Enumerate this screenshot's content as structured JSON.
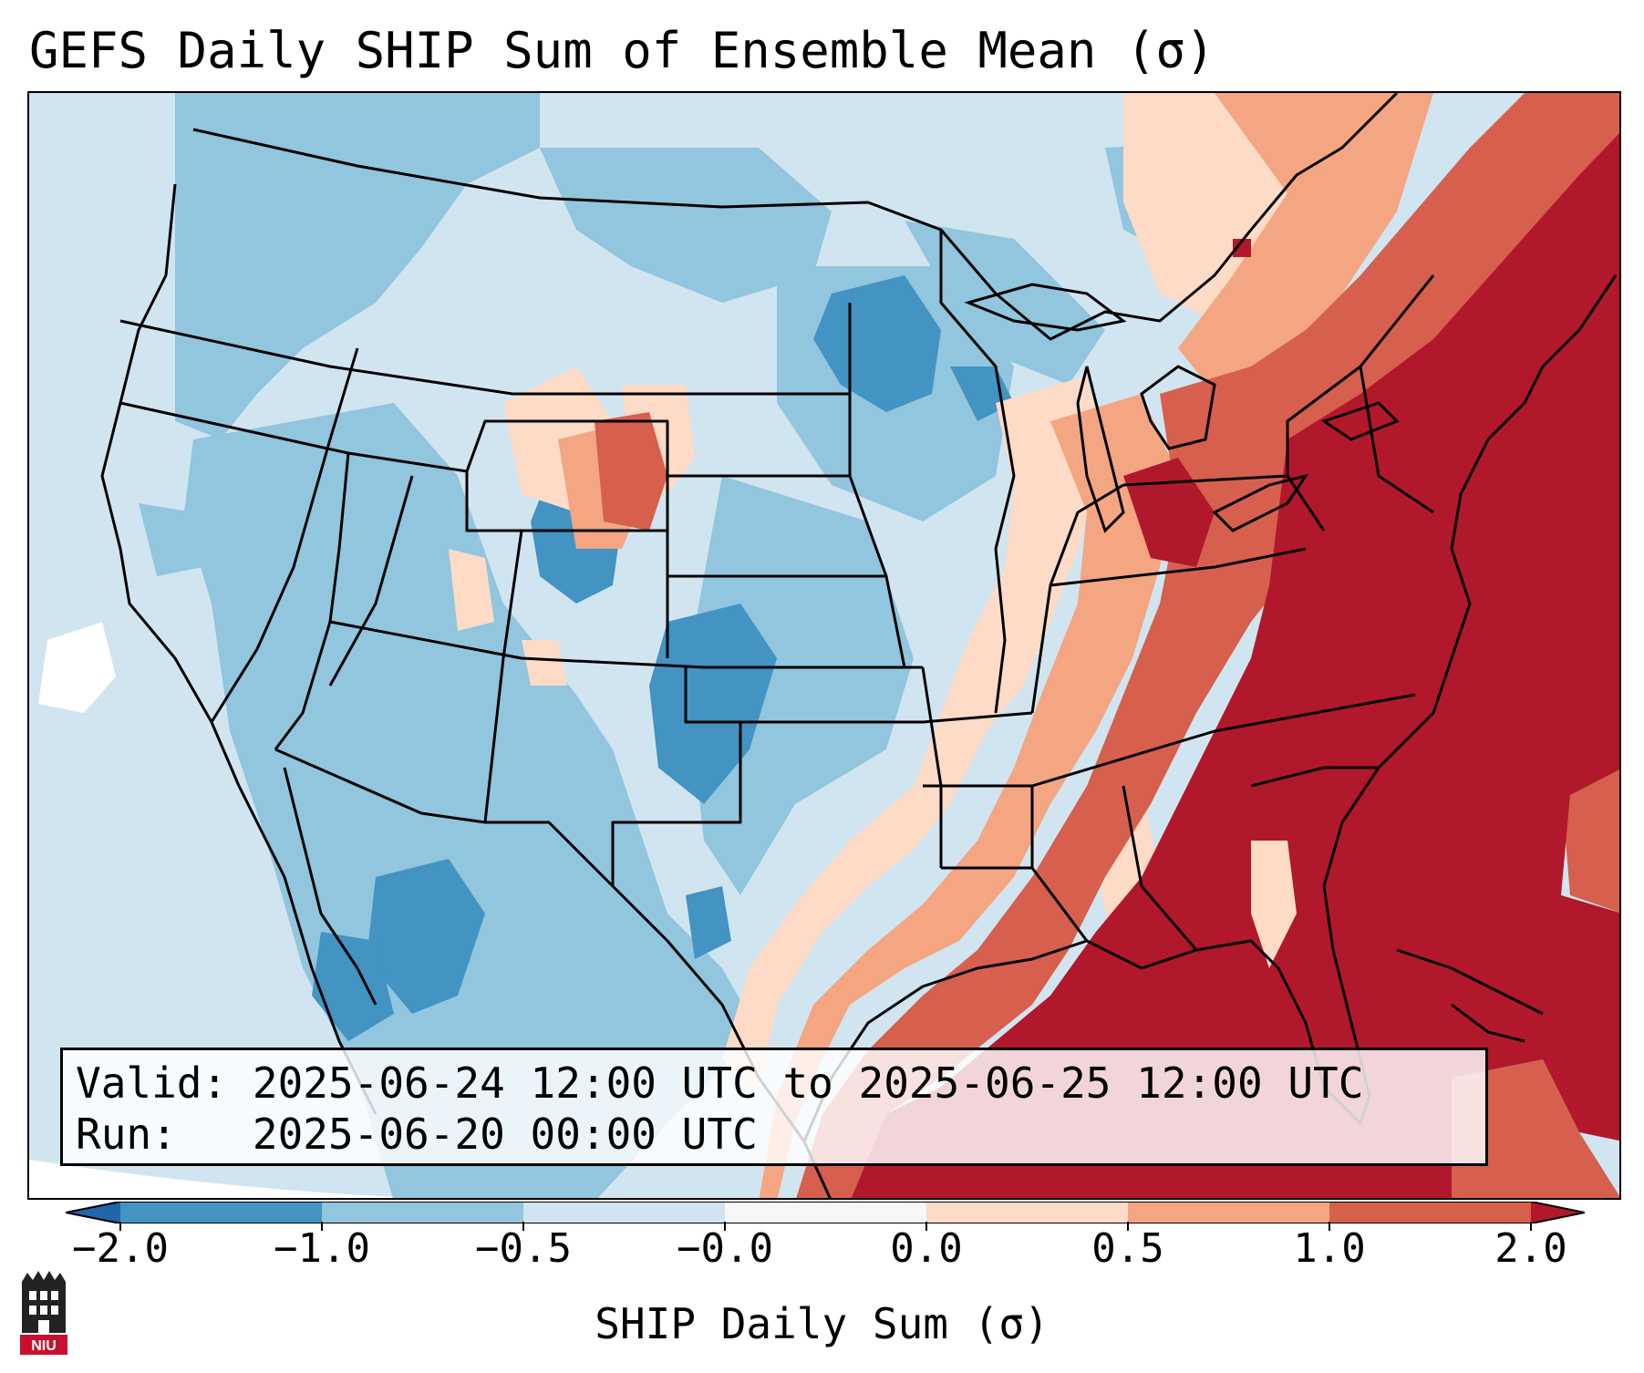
{
  "title": "GEFS Daily SHIP Sum of Ensemble Mean (σ)",
  "map": {
    "field": "SHIP daily sum, ensemble mean (standardized anomaly)",
    "region": "Contiguous United States",
    "pattern": {
      "east_of_mississippi": "positive anomalies, widely ≥ 2.0",
      "gulf_coast_and_southeast": "≥ 2.0",
      "northeast": "≥ 1.0 to 2.0",
      "plains_and_west": "-1.0 to -0.0",
      "upper_midwest_and_southern_plains": "-2.0 to -1.0 pockets",
      "nebraska_panhandle_wyoming": "0.0 to 1.0 pocket"
    }
  },
  "info": {
    "valid_label": "Valid:",
    "valid_value": "2025-06-24 12:00 UTC to 2025-06-25 12:00 UTC",
    "run_label": "Run:",
    "run_value": "2025-06-20 00:00 UTC"
  },
  "colorbar": {
    "label": "SHIP Daily Sum (σ)",
    "ticks": [
      "−2.0",
      "−1.0",
      "−0.5",
      "−0.0",
      "0.0",
      "0.5",
      "1.0",
      "2.0"
    ],
    "colors": [
      "#2166ac",
      "#4393c3",
      "#92c5de",
      "#d1e5f0",
      "#fddbc7",
      "#f4a582",
      "#d6604d",
      "#b2182b"
    ]
  },
  "logo": {
    "text": "NIU"
  }
}
